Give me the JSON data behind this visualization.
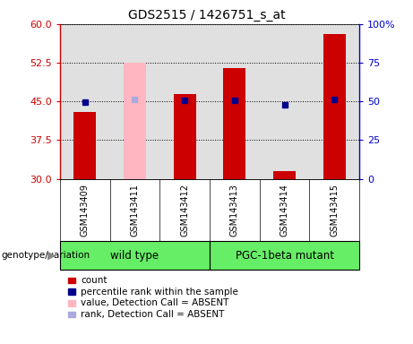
{
  "title": "GDS2515 / 1426751_s_at",
  "samples": [
    "GSM143409",
    "GSM143411",
    "GSM143412",
    "GSM143413",
    "GSM143414",
    "GSM143415"
  ],
  "bar_values": [
    43.0,
    null,
    46.5,
    51.5,
    31.5,
    58.0
  ],
  "bar_absent_values": [
    null,
    52.5,
    null,
    null,
    null,
    null
  ],
  "dot_values": [
    49.5,
    null,
    50.5,
    51.0,
    48.0,
    51.5
  ],
  "dot_absent_values": [
    null,
    51.5,
    null,
    null,
    null,
    null
  ],
  "bar_bottom": 30,
  "ylim_left": [
    30,
    60
  ],
  "ylim_right": [
    0,
    100
  ],
  "yticks_left": [
    30,
    37.5,
    45,
    52.5,
    60
  ],
  "yticks_right": [
    0,
    25,
    50,
    75,
    100
  ],
  "bar_color": "#CC0000",
  "bar_absent_color": "#FFB6C1",
  "dot_color": "#00008B",
  "dot_absent_color": "#AAAADD",
  "legend_items": [
    {
      "label": "count",
      "color": "#CC0000"
    },
    {
      "label": "percentile rank within the sample",
      "color": "#00008B"
    },
    {
      "label": "value, Detection Call = ABSENT",
      "color": "#FFB6C1"
    },
    {
      "label": "rank, Detection Call = ABSENT",
      "color": "#AAAADD"
    }
  ],
  "genotype_label": "genotype/variation",
  "axis_bg_color": "#E0E0E0",
  "group_bg_color": "#66EE66",
  "wt_label": "wild type",
  "pgc_label": "PGC-1beta mutant",
  "wt_indices": [
    0,
    1,
    2
  ],
  "pgc_indices": [
    3,
    4,
    5
  ]
}
